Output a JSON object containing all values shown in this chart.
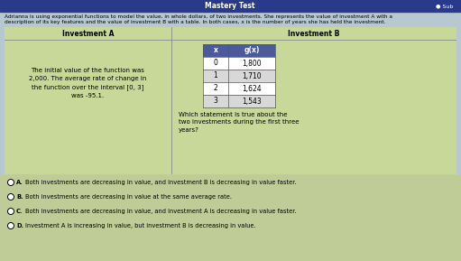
{
  "title_text": "Mastery Test",
  "sub_button": "● Sub",
  "description_line1": "Adrianna is using exponential functions to model the value, in whole dollars, of two investments. She represents the value of investment A with a",
  "description_line2": "description of its key features and the value of investment B with a table. In both cases, x is the number of years she has held the investment.",
  "inv_a_header": "Investment A",
  "inv_b_header": "Investment B",
  "inv_a_text": "The initial value of the function was\n2,000. The average rate of change in\nthe function over the interval [0, 3]\nwas -95.1.",
  "table_headers": [
    "x",
    "g(x)"
  ],
  "table_data": [
    [
      "0",
      "1,800"
    ],
    [
      "1",
      "1,710"
    ],
    [
      "2",
      "1,624"
    ],
    [
      "3",
      "1,543"
    ]
  ],
  "question_text": "Which statement is true about the\ntwo investments during the first three\nyears?",
  "options": [
    {
      "label": "A.",
      "text": "Both investments are decreasing in value, and investment B is decreasing in value faster."
    },
    {
      "label": "B.",
      "text": "Both investments are decreasing in value at the same average rate."
    },
    {
      "label": "C.",
      "text": "Both investments are decreasing in value, and investment A is decreasing in value faster."
    },
    {
      "label": "D.",
      "text": "Investment A is increasing in value, but investment B is decreasing in value."
    }
  ],
  "header_bar_color": "#2a3a8a",
  "table_header_bg": "#4a5a9a",
  "table_row_bg_even": "#ffffff",
  "table_row_bg_odd": "#d8d8d8",
  "outer_box_bg": "#c8d898",
  "outer_box_edge": "#888888",
  "page_bg": "#b8c8d0",
  "options_bg": "#c0cc98",
  "inner_table_border": "#555555"
}
